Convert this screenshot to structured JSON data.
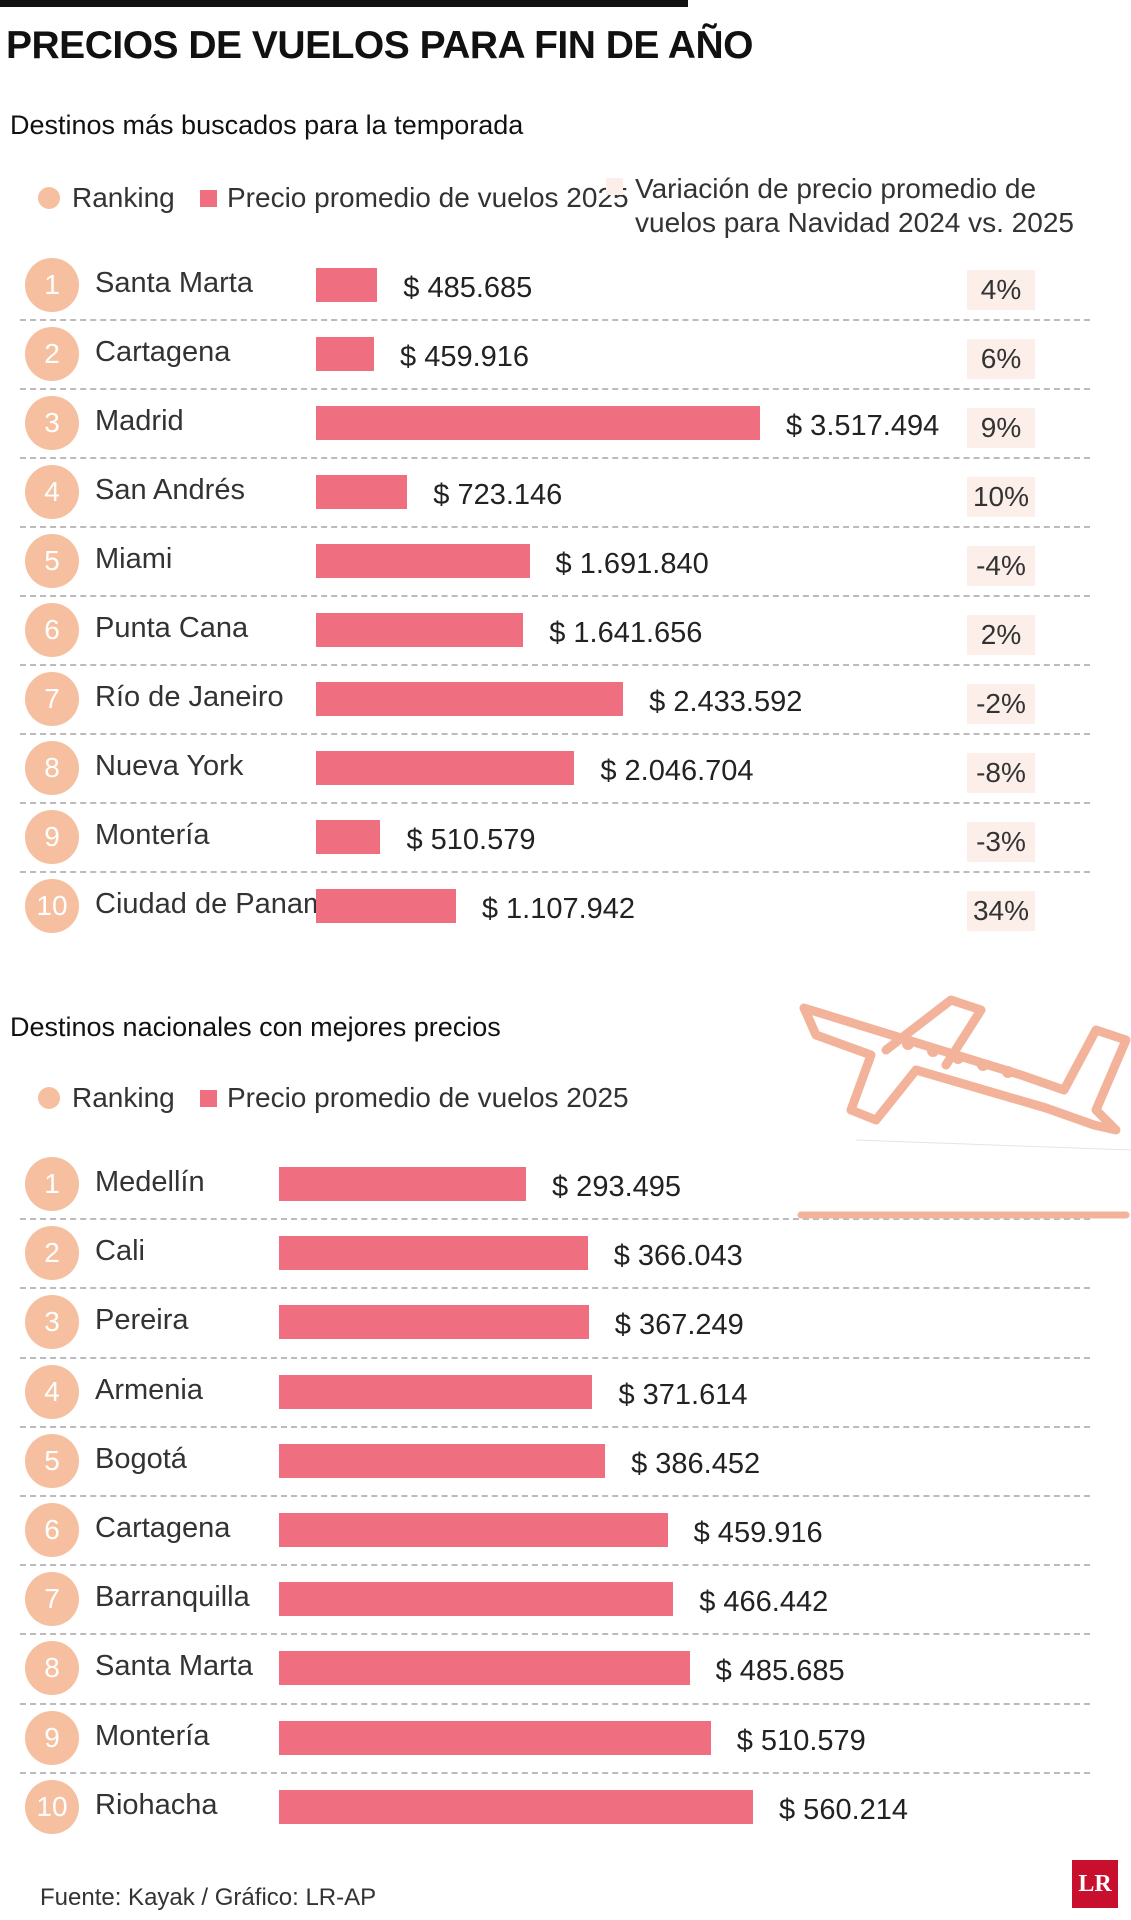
{
  "title": "PRECIOS DE VUELOS PARA FIN DE AÑO",
  "section1": {
    "subtitle": "Destinos más buscados para la temporada",
    "legend": {
      "ranking": "Ranking",
      "price": "Precio promedio de vuelos 2025",
      "variation": "Variación de precio promedio de vuelos para Navidad 2024 vs. 2025"
    },
    "rows": [
      {
        "rank": "1",
        "destination": "Santa Marta",
        "label": "$ 485.685",
        "variation": "4%"
      },
      {
        "rank": "2",
        "destination": "Cartagena",
        "label": "$ 459.916",
        "variation": "6%"
      },
      {
        "rank": "3",
        "destination": "Madrid",
        "label": "$ 3.517.494",
        "variation": "9%"
      },
      {
        "rank": "4",
        "destination": "San Andrés",
        "label": "$ 723.146",
        "variation": "10%"
      },
      {
        "rank": "5",
        "destination": "Miami",
        "label": "$ 1.691.840",
        "variation": "-4%"
      },
      {
        "rank": "6",
        "destination": "Punta Cana",
        "label": "$ 1.641.656",
        "variation": "2%"
      },
      {
        "rank": "7",
        "destination": "Río de Janeiro",
        "label": "$ 2.433.592",
        "variation": "-2%"
      },
      {
        "rank": "8",
        "destination": "Nueva York",
        "label": "$ 2.046.704",
        "variation": "-8%"
      },
      {
        "rank": "9",
        "destination": "Montería",
        "label": "$ 510.579",
        "variation": "-3%"
      },
      {
        "rank": "10",
        "destination": "Ciudad de Panamá",
        "label": "$ 1.107.942",
        "variation": "34%"
      }
    ]
  },
  "section2": {
    "subtitle": "Destinos nacionales con mejores precios",
    "legend": {
      "ranking": "Ranking",
      "price": "Precio promedio de vuelos 2025"
    },
    "rows": [
      {
        "rank": "1",
        "destination": "Medellín",
        "label": "$ 293.495"
      },
      {
        "rank": "2",
        "destination": "Cali",
        "label": "$ 366.043"
      },
      {
        "rank": "3",
        "destination": "Pereira",
        "label": "$ 367.249"
      },
      {
        "rank": "4",
        "destination": "Armenia",
        "label": "$ 371.614"
      },
      {
        "rank": "5",
        "destination": "Bogotá",
        "label": "$ 386.452"
      },
      {
        "rank": "6",
        "destination": "Cartagena",
        "label": "$ 459.916"
      },
      {
        "rank": "7",
        "destination": "Barranquilla",
        "label": "$ 466.442"
      },
      {
        "rank": "8",
        "destination": "Santa Marta",
        "label": "$ 485.685"
      },
      {
        "rank": "9",
        "destination": "Montería",
        "label": "$ 510.579"
      },
      {
        "rank": "10",
        "destination": "Riohacha",
        "label": "$ 560.214"
      }
    ]
  },
  "source": "Fuente: Kayak / Gráfico: LR-AP",
  "logo_text": "LR",
  "colors": {
    "bar": "#ef6f81",
    "rank_circle": "#f6bfa0",
    "variation_bg": "#fcefe9",
    "logo": "#c8102e",
    "plane": "#f3b39a"
  },
  "icons": [
    "airplane-icon",
    "lr-logo"
  ],
  "chart_data": [
    {
      "type": "bar",
      "title": "Destinos más buscados para la temporada",
      "categories": [
        "Santa Marta",
        "Cartagena",
        "Madrid",
        "San Andrés",
        "Miami",
        "Punta Cana",
        "Río de Janeiro",
        "Nueva York",
        "Montería",
        "Ciudad de Panamá"
      ],
      "series": [
        {
          "name": "Precio promedio de vuelos 2025",
          "values": [
            485685,
            459916,
            3517494,
            723146,
            1691840,
            1641656,
            2433592,
            2046704,
            510579,
            1107942
          ]
        },
        {
          "name": "Variación de precio promedio de vuelos para Navidad 2024 vs. 2025",
          "values": [
            4,
            6,
            9,
            10,
            -4,
            2,
            -2,
            -8,
            -3,
            34
          ]
        }
      ],
      "orientation": "horizontal"
    },
    {
      "type": "bar",
      "title": "Destinos nacionales con mejores precios",
      "categories": [
        "Medellín",
        "Cali",
        "Pereira",
        "Armenia",
        "Bogotá",
        "Cartagena",
        "Barranquilla",
        "Santa Marta",
        "Montería",
        "Riohacha"
      ],
      "series": [
        {
          "name": "Precio promedio de vuelos 2025",
          "values": [
            293495,
            366043,
            367249,
            371614,
            386452,
            459916,
            466442,
            485685,
            510579,
            560214
          ]
        }
      ],
      "orientation": "horizontal"
    }
  ]
}
